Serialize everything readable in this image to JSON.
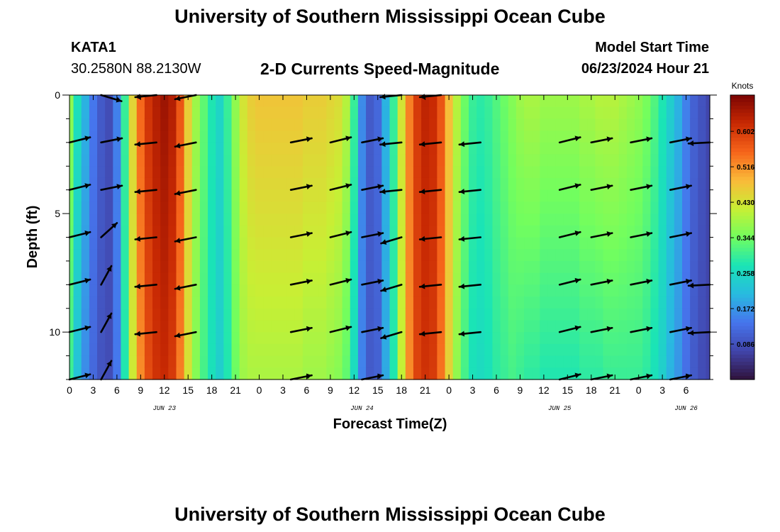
{
  "header": {
    "title": "University of Southern Mississippi Ocean Cube",
    "station": "KATA1",
    "coords": "30.2580N  88.2130W",
    "subtitle": "2-D Currents Speed-Magnitude",
    "model_start_label": "Model Start Time",
    "model_start_value": "06/23/2024 Hour 21"
  },
  "footer": {
    "title": "University of Southern Mississippi Ocean Cube"
  },
  "chart_data": {
    "type": "heatmap",
    "title": "2-D Currents Speed-Magnitude",
    "xlabel": "Forecast Time(Z)",
    "ylabel": "Depth (ft)",
    "colorbar_label": "Knots",
    "colorbar_ticks": [
      "0.086",
      "0.172",
      "0.258",
      "0.344",
      "0.430",
      "0.516",
      "0.602"
    ],
    "colorbar_values": [
      0.086,
      0.172,
      0.258,
      0.344,
      0.43,
      0.516,
      0.602
    ],
    "colorbar_range": [
      0.0,
      0.69
    ],
    "xlim": [
      0,
      81
    ],
    "ylim": [
      0,
      12
    ],
    "x_tick_labels": [
      "0",
      "3",
      "6",
      "9",
      "12",
      "15",
      "18",
      "21",
      "0",
      "3",
      "6",
      "9",
      "12",
      "15",
      "18",
      "21",
      "0",
      "3",
      "6",
      "9",
      "12",
      "15",
      "18",
      "21",
      "0",
      "3",
      "6"
    ],
    "y_tick_labels": [
      "0",
      "5",
      "10"
    ],
    "y_tick_values": [
      0,
      5,
      10
    ],
    "date_labels": [
      {
        "label": "JUN 23",
        "hour": 12
      },
      {
        "label": "JUN 24",
        "hour": 37
      },
      {
        "label": "JUN 25",
        "hour": 62
      },
      {
        "label": "JUN 26",
        "hour": 78
      }
    ],
    "depths_ft": [
      0,
      2,
      4,
      6,
      8,
      10,
      12
    ],
    "speed_profile": {
      "hours": [
        0,
        1,
        2,
        3,
        4,
        5,
        6,
        7,
        8,
        9,
        10,
        11,
        12,
        13,
        14,
        15,
        16,
        17,
        18,
        19,
        20,
        21,
        22,
        23,
        24,
        25,
        26,
        27,
        28,
        29,
        30,
        31,
        32,
        33,
        34,
        35,
        36,
        37,
        38,
        39,
        40,
        41,
        42,
        43,
        44,
        45,
        46,
        47,
        48,
        49,
        50,
        51,
        52,
        53,
        54,
        55,
        56,
        57,
        58,
        59,
        60,
        61,
        62,
        63,
        64,
        65,
        66,
        67,
        68,
        69,
        70,
        71,
        72,
        73,
        74,
        75,
        76,
        77,
        78,
        79,
        80,
        81
      ],
      "surface_knots": [
        0.37,
        0.27,
        0.2,
        0.14,
        0.1,
        0.08,
        0.15,
        0.3,
        0.45,
        0.55,
        0.61,
        0.64,
        0.66,
        0.64,
        0.57,
        0.46,
        0.38,
        0.33,
        0.28,
        0.25,
        0.3,
        0.37,
        0.43,
        0.46,
        0.47,
        0.47,
        0.47,
        0.47,
        0.47,
        0.47,
        0.46,
        0.46,
        0.46,
        0.45,
        0.44,
        0.4,
        0.3,
        0.16,
        0.1,
        0.12,
        0.2,
        0.3,
        0.43,
        0.53,
        0.6,
        0.63,
        0.62,
        0.57,
        0.48,
        0.4,
        0.34,
        0.3,
        0.29,
        0.3,
        0.32,
        0.34,
        0.36,
        0.38,
        0.39,
        0.39,
        0.38,
        0.38,
        0.38,
        0.38,
        0.38,
        0.39,
        0.39,
        0.4,
        0.4,
        0.4,
        0.39,
        0.38,
        0.37,
        0.35,
        0.32,
        0.28,
        0.24,
        0.2,
        0.15,
        0.11,
        0.09,
        0.07
      ],
      "bottom_knots": [
        0.3,
        0.22,
        0.16,
        0.12,
        0.09,
        0.08,
        0.14,
        0.28,
        0.42,
        0.52,
        0.58,
        0.61,
        0.62,
        0.6,
        0.53,
        0.43,
        0.36,
        0.31,
        0.27,
        0.24,
        0.28,
        0.34,
        0.38,
        0.39,
        0.39,
        0.39,
        0.39,
        0.39,
        0.39,
        0.39,
        0.38,
        0.38,
        0.38,
        0.37,
        0.36,
        0.33,
        0.26,
        0.15,
        0.1,
        0.11,
        0.19,
        0.28,
        0.41,
        0.52,
        0.59,
        0.61,
        0.6,
        0.54,
        0.45,
        0.37,
        0.31,
        0.27,
        0.26,
        0.27,
        0.29,
        0.3,
        0.31,
        0.3,
        0.29,
        0.29,
        0.28,
        0.28,
        0.28,
        0.28,
        0.28,
        0.29,
        0.29,
        0.29,
        0.3,
        0.3,
        0.3,
        0.3,
        0.3,
        0.29,
        0.27,
        0.24,
        0.2,
        0.17,
        0.13,
        0.1,
        0.08,
        0.07
      ]
    },
    "vectors": [
      {
        "hour": 0,
        "dir": [
          1,
          -0.25
        ],
        "depths": [
          2,
          4,
          6,
          8,
          10,
          12
        ]
      },
      {
        "hour": 4,
        "dir": [
          1,
          0.3
        ],
        "depths": [
          0
        ]
      },
      {
        "hour": 4,
        "dir": [
          1,
          -0.2
        ],
        "depths": [
          2,
          4
        ]
      },
      {
        "hour": 4,
        "dir": [
          1,
          -0.9
        ],
        "depths": [
          6
        ]
      },
      {
        "hour": 4,
        "dir": [
          0.55,
          -1
        ],
        "depths": [
          8,
          10,
          12
        ]
      },
      {
        "hour": 11,
        "dir": [
          -1,
          0.1
        ],
        "depths": [
          0,
          2,
          4,
          6,
          8,
          10
        ]
      },
      {
        "hour": 16,
        "dir": [
          -1,
          0.2
        ],
        "depths": [
          0,
          2,
          4,
          6,
          8,
          10
        ]
      },
      {
        "hour": 28,
        "dir": [
          1,
          -0.2
        ],
        "depths": [
          2,
          4,
          6,
          8,
          10,
          12
        ]
      },
      {
        "hour": 33,
        "dir": [
          1,
          -0.25
        ],
        "depths": [
          2,
          4,
          6,
          8,
          10
        ]
      },
      {
        "hour": 37,
        "dir": [
          1,
          -0.2
        ],
        "depths": [
          2,
          4,
          6,
          8,
          10,
          12
        ]
      },
      {
        "hour": 42,
        "dir": [
          -1,
          0.1
        ],
        "depths": [
          0,
          2,
          4
        ]
      },
      {
        "hour": 42,
        "dir": [
          -1,
          0.3
        ],
        "depths": [
          6,
          8,
          10
        ]
      },
      {
        "hour": 47,
        "dir": [
          -1,
          0.1
        ],
        "depths": [
          0,
          2,
          4,
          6,
          8,
          10
        ]
      },
      {
        "hour": 52,
        "dir": [
          -1,
          0.1
        ],
        "depths": [
          2,
          4,
          6,
          8,
          10
        ]
      },
      {
        "hour": 62,
        "dir": [
          1,
          -0.25
        ],
        "depths": [
          2,
          4,
          6,
          8,
          10,
          12
        ]
      },
      {
        "hour": 66,
        "dir": [
          1,
          -0.2
        ],
        "depths": [
          2,
          4,
          6,
          8,
          10,
          12
        ]
      },
      {
        "hour": 71,
        "dir": [
          1,
          -0.2
        ],
        "depths": [
          2,
          4,
          6,
          8,
          10,
          12
        ]
      },
      {
        "hour": 76,
        "dir": [
          1,
          -0.2
        ],
        "depths": [
          2,
          4,
          6,
          8,
          10,
          12
        ]
      },
      {
        "hour": 81,
        "dir": [
          -1,
          0.05
        ],
        "depths": [
          2,
          8,
          10
        ]
      }
    ]
  }
}
